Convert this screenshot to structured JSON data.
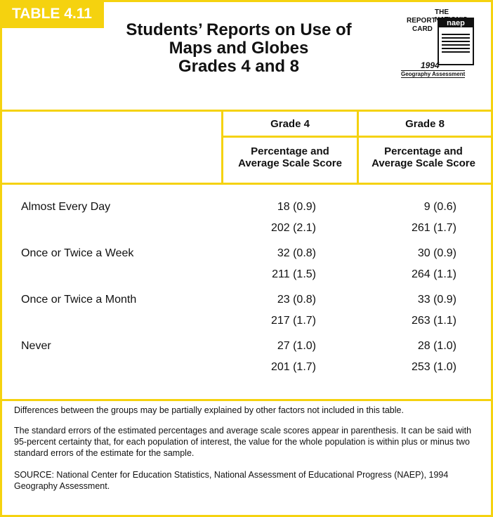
{
  "header": {
    "label": "TABLE 4.11",
    "title": [
      "Students’ Reports on Use of",
      "Maps and Globes",
      "Grades 4 and 8"
    ],
    "logo": {
      "line1": "THE NATION'S",
      "line2": "REPORT",
      "line3": "CARD",
      "mark": "naep",
      "year": "1994",
      "subject": "Geography Assessment"
    }
  },
  "table": {
    "columns": [
      "Grade 4",
      "Grade 8"
    ],
    "subheaders": [
      "Percentage and Average Scale Score",
      "Percentage and Average Scale Score"
    ],
    "rows": [
      {
        "label": "Almost Every Day",
        "grade4": [
          "18 (0.9)",
          "202 (2.1)"
        ],
        "grade8": [
          "9 (0.6)",
          "261 (1.7)"
        ]
      },
      {
        "label": "Once or Twice a Week",
        "grade4": [
          "32 (0.8)",
          "211 (1.5)"
        ],
        "grade8": [
          "30 (0.9)",
          "264 (1.1)"
        ]
      },
      {
        "label": "Once or Twice a Month",
        "grade4": [
          "23 (0.8)",
          "217 (1.7)"
        ],
        "grade8": [
          "33 (0.9)",
          "263 (1.1)"
        ]
      },
      {
        "label": "Never",
        "grade4": [
          "27 (1.0)",
          "201 (1.7)"
        ],
        "grade8": [
          "28 (1.0)",
          "253 (1.0)"
        ]
      }
    ]
  },
  "notes": [
    "Differences between the groups may be partially explained by other factors not included in this table.",
    "The standard errors of the estimated percentages and average scale scores appear in parenthesis. It can be said with 95-percent certainty that, for each population of interest, the value for the whole population is within plus or minus two standard errors of the estimate for the sample.",
    "SOURCE: National Center for Education Statistics, National Assessment of Educational Progress (NAEP), 1994 Geography Assessment."
  ]
}
